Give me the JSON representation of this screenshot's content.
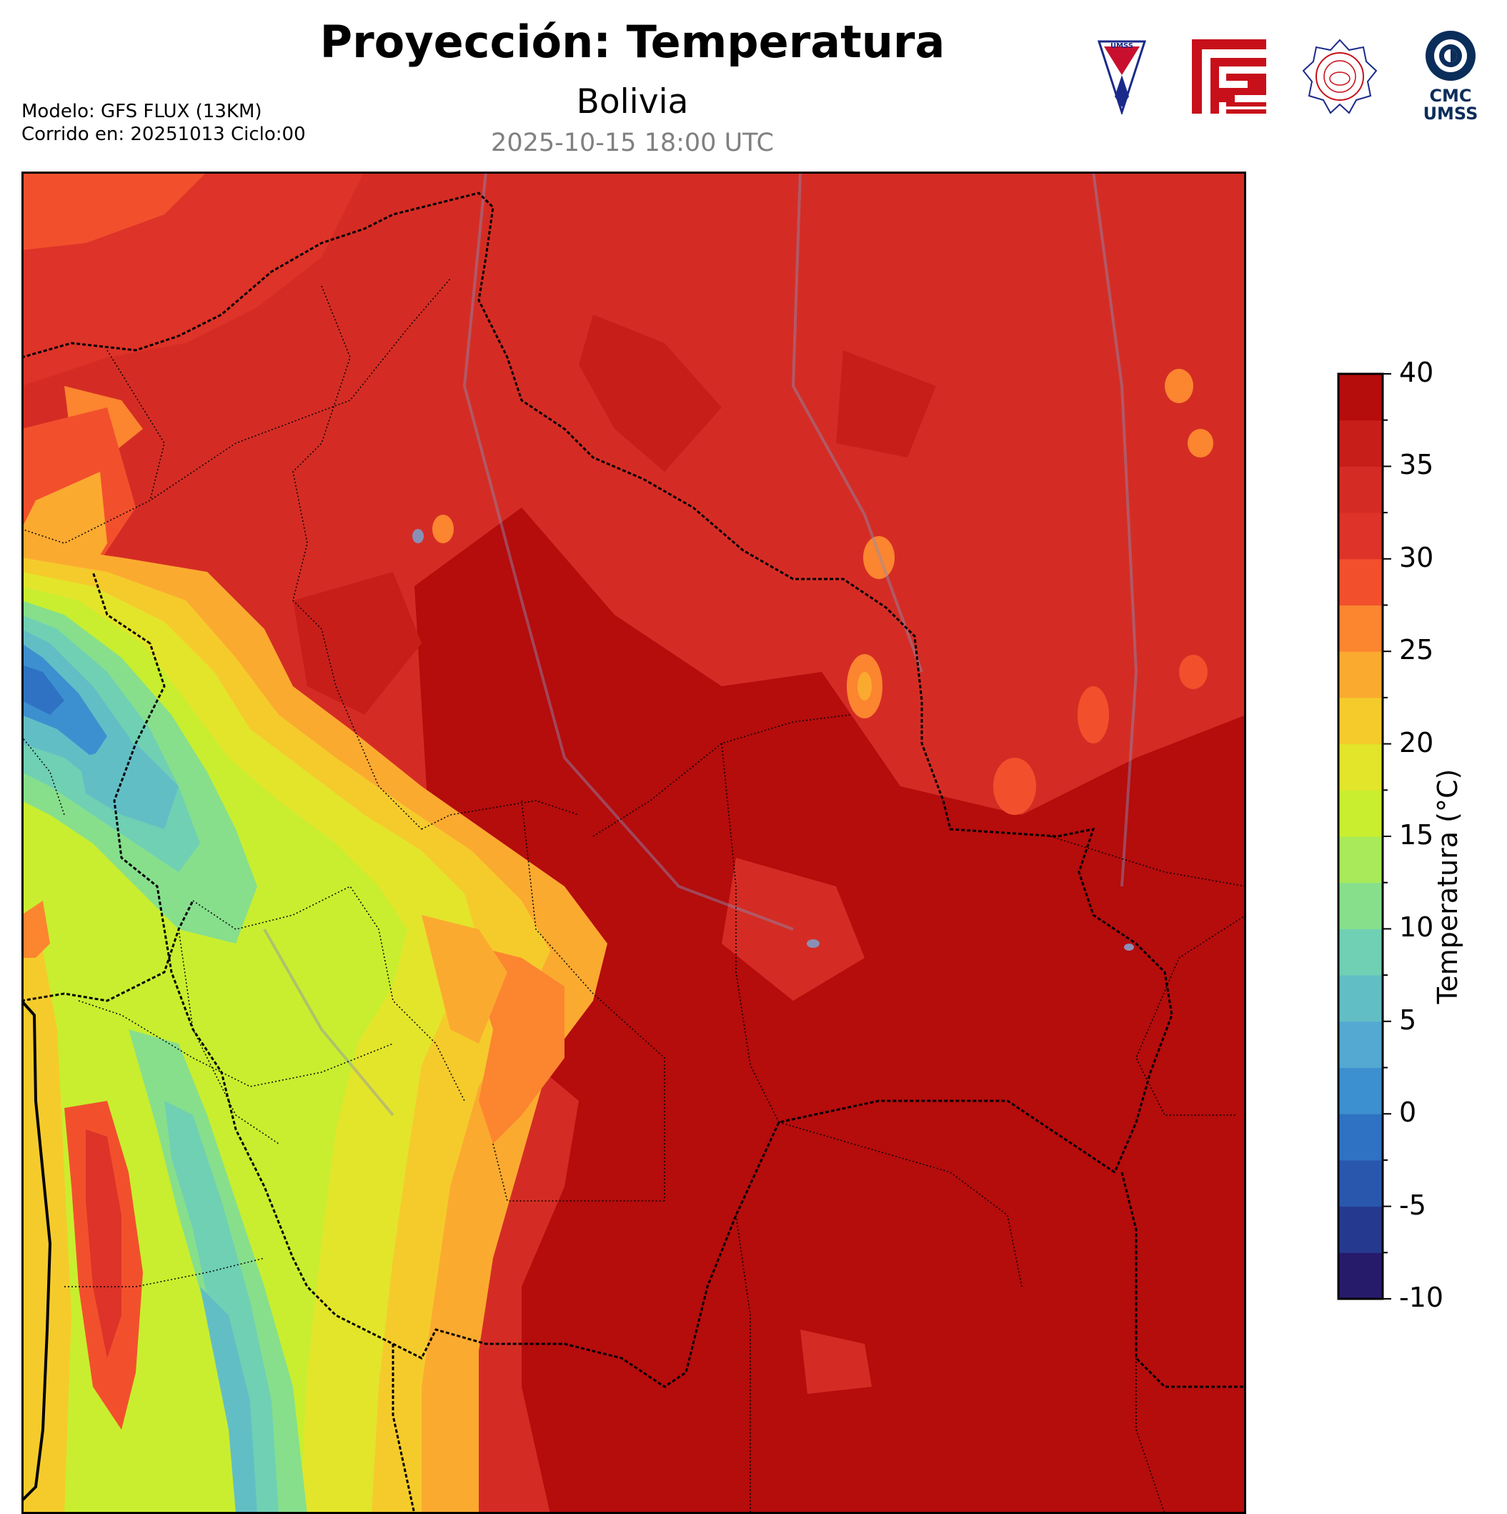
{
  "header": {
    "title": "Proyección: Temperatura",
    "subtitle": "Bolivia",
    "datetime": "2025-10-15 18:00 UTC",
    "model_line": "Modelo: GFS FLUX (13KM)",
    "run_line": "Corrido en: 20251013 Ciclo:00"
  },
  "logos": {
    "umss_text": "UMSS",
    "cmc_line1": "CMC",
    "cmc_line2": "UMSS"
  },
  "colorbar": {
    "label": "Temperatura (°C)",
    "ticks": [
      "40",
      "35",
      "30",
      "25",
      "20",
      "15",
      "10",
      "5",
      "0",
      "-5",
      "-10"
    ],
    "min": -10,
    "max": 40,
    "step": 2.5,
    "colors": [
      "#261a6b",
      "#253a8f",
      "#2a57ae",
      "#2f72c3",
      "#3c90cf",
      "#53a9d1",
      "#62bec5",
      "#6fd0b4",
      "#87df8c",
      "#a8ea59",
      "#c9ee2f",
      "#e3e52b",
      "#f5cb2c",
      "#fbaa30",
      "#fc8530",
      "#f2502d",
      "#dd3328",
      "#d42c24",
      "#c81e1a",
      "#b50c0c"
    ]
  },
  "colors": {
    "hot": "#b50c0c",
    "warm": "#d42c24",
    "mild": "#f5cb2c",
    "cool": "#c9ee2f",
    "cold": "#62bec5"
  }
}
